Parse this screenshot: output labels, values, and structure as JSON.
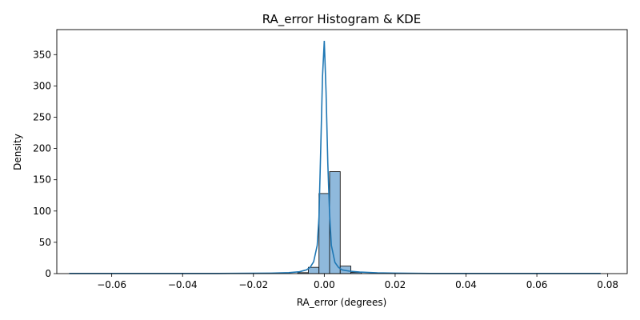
{
  "chart_data": {
    "type": "bar",
    "title": "RA_error Histogram & KDE",
    "xlabel": "RA_error (degrees)",
    "ylabel": "Density",
    "xlim": [
      -0.0755,
      0.0855
    ],
    "ylim": [
      0,
      390
    ],
    "x_ticks": [
      -0.06,
      -0.04,
      -0.02,
      0.0,
      0.02,
      0.04,
      0.06,
      0.08
    ],
    "x_tick_labels": [
      "−0.06",
      "−0.04",
      "−0.02",
      "0.00",
      "0.02",
      "0.04",
      "0.06",
      "0.08"
    ],
    "y_ticks": [
      0,
      50,
      100,
      150,
      200,
      250,
      300,
      350
    ],
    "y_tick_labels": [
      "0",
      "50",
      "100",
      "150",
      "200",
      "250",
      "300",
      "350"
    ],
    "grid": false,
    "legend": "none",
    "colors": {
      "bar_fill": "#8fb9dc",
      "bar_edge": "#1a1a1a",
      "kde": "#1f77b4"
    },
    "histogram": {
      "bin_width": 0.003,
      "bins": [
        {
          "start": -0.0075,
          "end": -0.0045,
          "value": 1.5
        },
        {
          "start": -0.0045,
          "end": -0.0015,
          "value": 10
        },
        {
          "start": -0.0015,
          "end": 0.0015,
          "value": 128
        },
        {
          "start": 0.0015,
          "end": 0.0045,
          "value": 163
        },
        {
          "start": 0.0045,
          "end": 0.0075,
          "value": 12
        },
        {
          "start": 0.0075,
          "end": 0.0105,
          "value": 2
        }
      ]
    },
    "kde": {
      "x": [
        -0.072,
        -0.03,
        -0.015,
        -0.01,
        -0.007,
        -0.005,
        -0.004,
        -0.003,
        -0.002,
        -0.0015,
        -0.001,
        -0.0005,
        0.0,
        0.0005,
        0.001,
        0.0015,
        0.002,
        0.003,
        0.004,
        0.005,
        0.007,
        0.01,
        0.015,
        0.02,
        0.03,
        0.078
      ],
      "y": [
        0.3,
        0.3,
        0.8,
        1.5,
        3,
        6,
        10,
        19,
        45,
        90,
        200,
        315,
        372,
        290,
        175,
        95,
        45,
        18,
        10,
        6,
        4,
        2.5,
        1.2,
        0.7,
        0.3,
        0.3
      ]
    }
  }
}
